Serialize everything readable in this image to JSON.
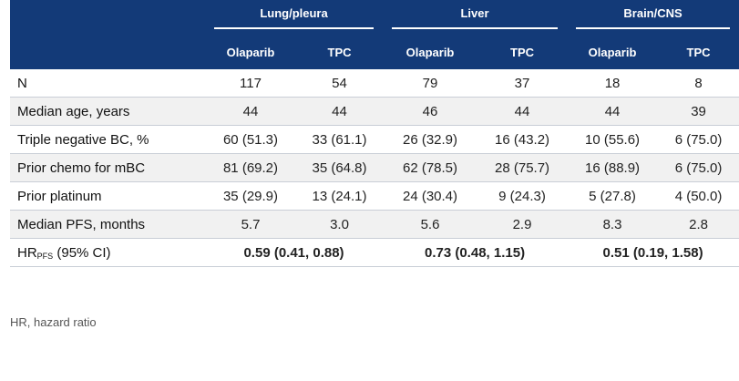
{
  "groups": [
    {
      "label": "Lung/pleura"
    },
    {
      "label": "Liver"
    },
    {
      "label": "Brain/CNS"
    }
  ],
  "subheaders": [
    "Olaparib",
    "TPC",
    "Olaparib",
    "TPC",
    "Olaparib",
    "TPC"
  ],
  "rows": [
    {
      "label": "N",
      "cells": [
        "117",
        "54",
        "79",
        "37",
        "18",
        "8"
      ]
    },
    {
      "label": "Median age, years",
      "cells": [
        "44",
        "44",
        "46",
        "44",
        "44",
        "39"
      ]
    },
    {
      "label": "Triple negative BC, %",
      "cells": [
        "60 (51.3)",
        "33 (61.1)",
        "26 (32.9)",
        "16 (43.2)",
        "10 (55.6)",
        "6 (75.0)"
      ]
    },
    {
      "label": "Prior chemo for mBC",
      "cells": [
        "81 (69.2)",
        "35 (64.8)",
        "62 (78.5)",
        "28 (75.7)",
        "16 (88.9)",
        "6 (75.0)"
      ]
    },
    {
      "label": "Prior platinum",
      "cells": [
        "35 (29.9)",
        "13 (24.1)",
        "24 (30.4)",
        "9 (24.3)",
        "5 (27.8)",
        "4 (50.0)"
      ]
    },
    {
      "label": "Median PFS, months",
      "cells": [
        "5.7",
        "3.0",
        "5.6",
        "2.9",
        "8.3",
        "2.8"
      ]
    }
  ],
  "hr_row": {
    "label_main": "HR",
    "label_sub": "PFS",
    "label_rest": " (95% CI)",
    "values": [
      "0.59 (0.41, 0.88)",
      "0.73 (0.48, 1.15)",
      "0.51 (0.19, 1.58)"
    ]
  },
  "footnote": "HR, hazard ratio"
}
